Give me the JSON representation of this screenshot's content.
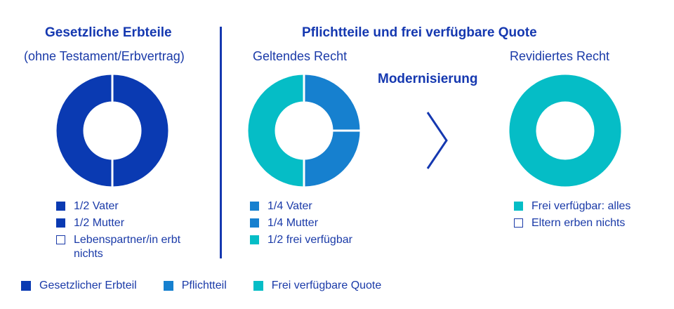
{
  "colors": {
    "gesetzlich": "#0a3ab2",
    "pflicht": "#1680cf",
    "frei": "#05bdc6",
    "outline": "#1a3aa8"
  },
  "left": {
    "heading": "Gesetzliche Erbteile",
    "subheading": "(ohne Testament/Erbvertrag)",
    "legend": [
      {
        "label": "1/2 Vater",
        "color": "#0a3ab2",
        "filled": true
      },
      {
        "label": "1/2 Mutter",
        "color": "#0a3ab2",
        "filled": true
      },
      {
        "label": "Lebenspartner/in erbt nichts",
        "color": "#1a3aa8",
        "filled": false
      }
    ]
  },
  "right": {
    "heading": "Pflichtteile und frei verfügbare Quote",
    "geltend_title": "Geltendes Recht",
    "modernisierung": "Modernisierung",
    "revidiert_title": "Revidiertes Recht",
    "geltend_legend": [
      {
        "label": "1/4 Vater",
        "color": "#1680cf",
        "filled": true
      },
      {
        "label": "1/4 Mutter",
        "color": "#1680cf",
        "filled": true
      },
      {
        "label": "1/2 frei verfügbar",
        "color": "#05bdc6",
        "filled": true
      }
    ],
    "revidiert_legend": [
      {
        "label": "Frei verfügbar: alles",
        "color": "#05bdc6",
        "filled": true
      },
      {
        "label": "Eltern erben nichts",
        "color": "#1a3aa8",
        "filled": false
      }
    ]
  },
  "bottom_legend": [
    {
      "label": "Gesetzlicher Erbteil",
      "color": "#0a3ab2"
    },
    {
      "label": "Pflichtteil",
      "color": "#1680cf"
    },
    {
      "label": "Frei verfügbare Quote",
      "color": "#05bdc6"
    }
  ],
  "chart_data": [
    {
      "type": "pie",
      "subtitle": "(ohne Testament/Erbvertrag)",
      "title": "Gesetzliche Erbteile",
      "slices": [
        {
          "label": "1/2 Vater",
          "value": 0.5,
          "color": "#0a3ab2"
        },
        {
          "label": "1/2 Mutter",
          "value": 0.5,
          "color": "#0a3ab2"
        }
      ]
    },
    {
      "type": "pie",
      "title": "Geltendes Recht",
      "slices": [
        {
          "label": "1/4 Vater",
          "value": 0.25,
          "color": "#1680cf"
        },
        {
          "label": "1/4 Mutter",
          "value": 0.25,
          "color": "#1680cf"
        },
        {
          "label": "1/2 frei verfügbar",
          "value": 0.5,
          "color": "#05bdc6"
        }
      ]
    },
    {
      "type": "pie",
      "title": "Revidiertes Recht",
      "slices": [
        {
          "label": "Frei verfügbar: alles",
          "value": 1.0,
          "color": "#05bdc6"
        }
      ]
    }
  ]
}
